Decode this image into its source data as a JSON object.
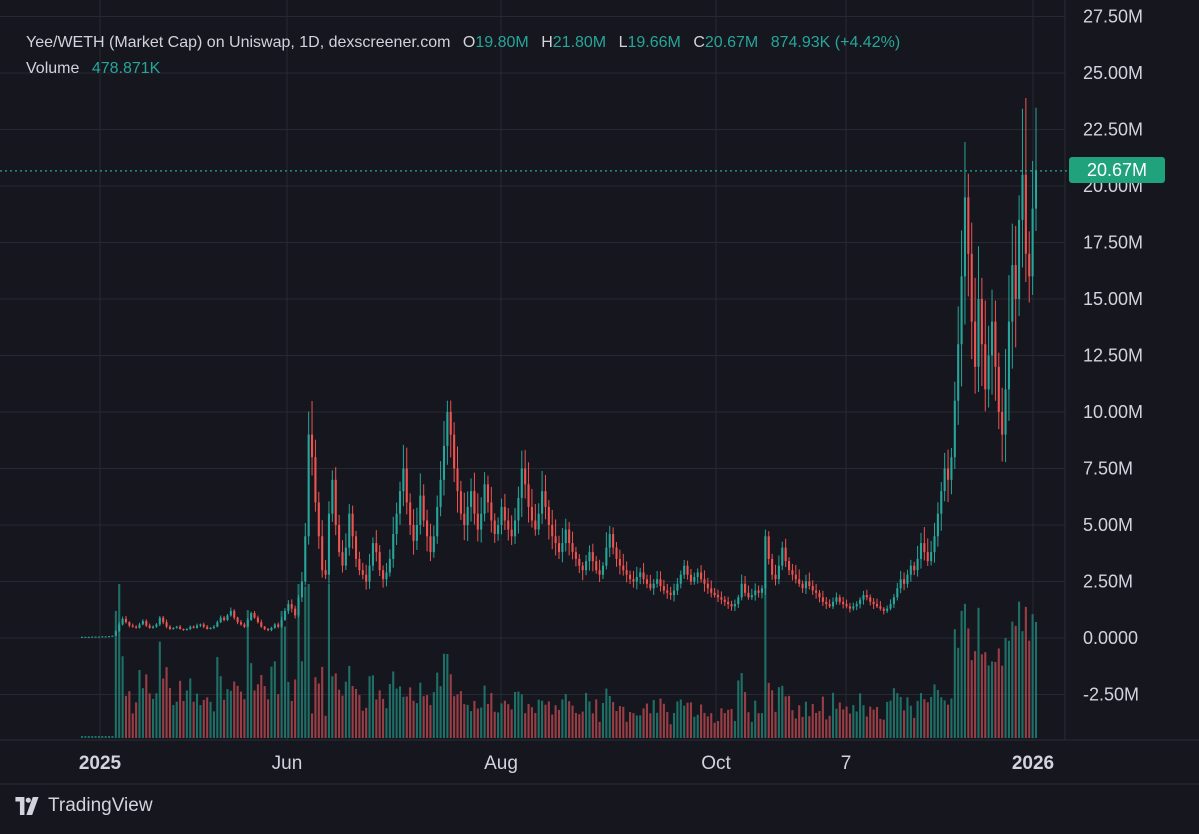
{
  "legend": {
    "title": "Yee/WETH (Market Cap) on Uniswap, 1D, dexscreener.com",
    "o_label": "O",
    "o_value": "19.80M",
    "h_label": "H",
    "h_value": "21.80M",
    "l_label": "L",
    "l_value": "19.66M",
    "c_label": "C",
    "c_value": "20.67M",
    "change": "874.93K (+4.42%)",
    "volume_label": "Volume",
    "volume_value": "478.871K"
  },
  "last_price_badge": "20.67M",
  "branding": {
    "name": "TradingView",
    "logo_icon": "tradingview-logo-icon"
  },
  "colors": {
    "background": "#15161e",
    "up": "#26a69a",
    "down": "#ef5350",
    "up_volume": "#1f7a6f",
    "down_volume": "#a8434a",
    "grid": "#262833",
    "axis_text": "#d1d4dc",
    "badge": "#20a37c"
  },
  "chart_data": {
    "type": "candlestick",
    "title": "Yee/WETH (Market Cap) on Uniswap, 1D, dexscreener.com",
    "interval": "1D",
    "y_axis": {
      "position": "right",
      "ticks": [
        "27.50M",
        "25.00M",
        "22.50M",
        "20.00M",
        "17.50M",
        "15.00M",
        "12.50M",
        "10.00M",
        "7.50M",
        "5.00M",
        "2.50M",
        "0.0000",
        "-2.50M"
      ],
      "range_millions": [
        -4.3,
        27.8
      ]
    },
    "x_axis": {
      "ticks": [
        "2025",
        "Jun",
        "Aug",
        "Oct",
        "7",
        "2026"
      ]
    },
    "last_value_millions": 20.67,
    "grid": true,
    "series_close_millions": [
      0.05,
      0.05,
      0.05,
      0.06,
      0.06,
      0.06,
      0.07,
      0.07,
      0.08,
      0.1,
      0.3,
      0.6,
      0.85,
      0.7,
      0.55,
      0.5,
      0.45,
      0.6,
      0.75,
      0.55,
      0.45,
      0.5,
      0.6,
      0.9,
      0.7,
      0.5,
      0.4,
      0.45,
      0.5,
      0.4,
      0.35,
      0.4,
      0.5,
      0.45,
      0.55,
      0.6,
      0.5,
      0.4,
      0.45,
      0.5,
      0.7,
      0.9,
      0.8,
      1.0,
      1.2,
      0.9,
      0.7,
      0.6,
      0.5,
      0.8,
      1.1,
      0.9,
      0.7,
      0.5,
      0.4,
      0.35,
      0.45,
      0.6,
      0.5,
      0.8,
      1.2,
      1.5,
      1.3,
      1.0,
      1.8,
      2.5,
      4.5,
      9.0,
      8.0,
      6.0,
      4.5,
      3.0,
      2.8,
      5.5,
      7.0,
      5.0,
      3.8,
      3.2,
      4.0,
      5.5,
      4.5,
      3.5,
      3.0,
      2.8,
      2.5,
      3.2,
      4.2,
      3.8,
      3.0,
      2.6,
      2.9,
      3.5,
      4.6,
      5.5,
      6.5,
      7.5,
      6.0,
      5.0,
      4.3,
      5.0,
      6.3,
      5.2,
      4.5,
      3.8,
      4.5,
      5.8,
      7.0,
      8.5,
      10.0,
      9.0,
      7.5,
      6.5,
      5.5,
      5.0,
      5.8,
      6.5,
      5.5,
      4.8,
      5.5,
      6.8,
      6.0,
      5.2,
      4.6,
      5.0,
      5.8,
      5.2,
      4.8,
      4.5,
      5.2,
      6.2,
      7.5,
      6.8,
      5.8,
      5.2,
      4.8,
      5.5,
      6.5,
      5.8,
      5.0,
      4.5,
      4.2,
      3.8,
      4.2,
      4.8,
      4.2,
      3.8,
      3.5,
      3.2,
      3.0,
      3.4,
      3.8,
      3.4,
      3.0,
      2.8,
      3.2,
      4.0,
      4.6,
      4.0,
      3.5,
      3.2,
      3.0,
      2.8,
      2.6,
      2.5,
      2.7,
      2.9,
      2.6,
      2.4,
      2.2,
      2.4,
      2.6,
      2.3,
      2.1,
      2.0,
      1.9,
      2.1,
      2.4,
      2.8,
      3.2,
      2.8,
      2.5,
      2.7,
      2.9,
      2.6,
      2.4,
      2.2,
      2.0,
      1.9,
      1.8,
      1.7,
      1.6,
      1.5,
      1.4,
      1.5,
      1.8,
      2.4,
      2.0,
      1.8,
      1.9,
      2.1,
      2.0,
      2.2,
      4.5,
      3.5,
      2.8,
      2.6,
      3.2,
      4.0,
      3.4,
      3.0,
      2.8,
      2.6,
      2.4,
      2.2,
      2.5,
      2.3,
      2.1,
      2.0,
      1.8,
      1.6,
      1.5,
      1.4,
      1.6,
      1.8,
      1.6,
      1.5,
      1.4,
      1.3,
      1.4,
      1.5,
      1.7,
      1.9,
      1.8,
      1.6,
      1.5,
      1.4,
      1.3,
      1.2,
      1.3,
      1.5,
      1.8,
      2.2,
      2.6,
      2.4,
      2.8,
      3.2,
      3.0,
      3.5,
      4.2,
      3.8,
      3.4,
      3.8,
      4.5,
      5.5,
      6.5,
      7.5,
      7.0,
      8.0,
      10.5,
      13.0,
      16.0,
      19.5,
      17.0,
      14.0,
      12.0,
      15.0,
      13.0,
      11.0,
      12.5,
      14.0,
      12.0,
      10.0,
      9.0,
      11.0,
      14.0,
      16.5,
      15.0,
      18.5,
      20.5,
      17.0,
      16.0,
      19.0,
      20.7
    ],
    "volume_note": "volume histogram along bottom of price pane"
  }
}
